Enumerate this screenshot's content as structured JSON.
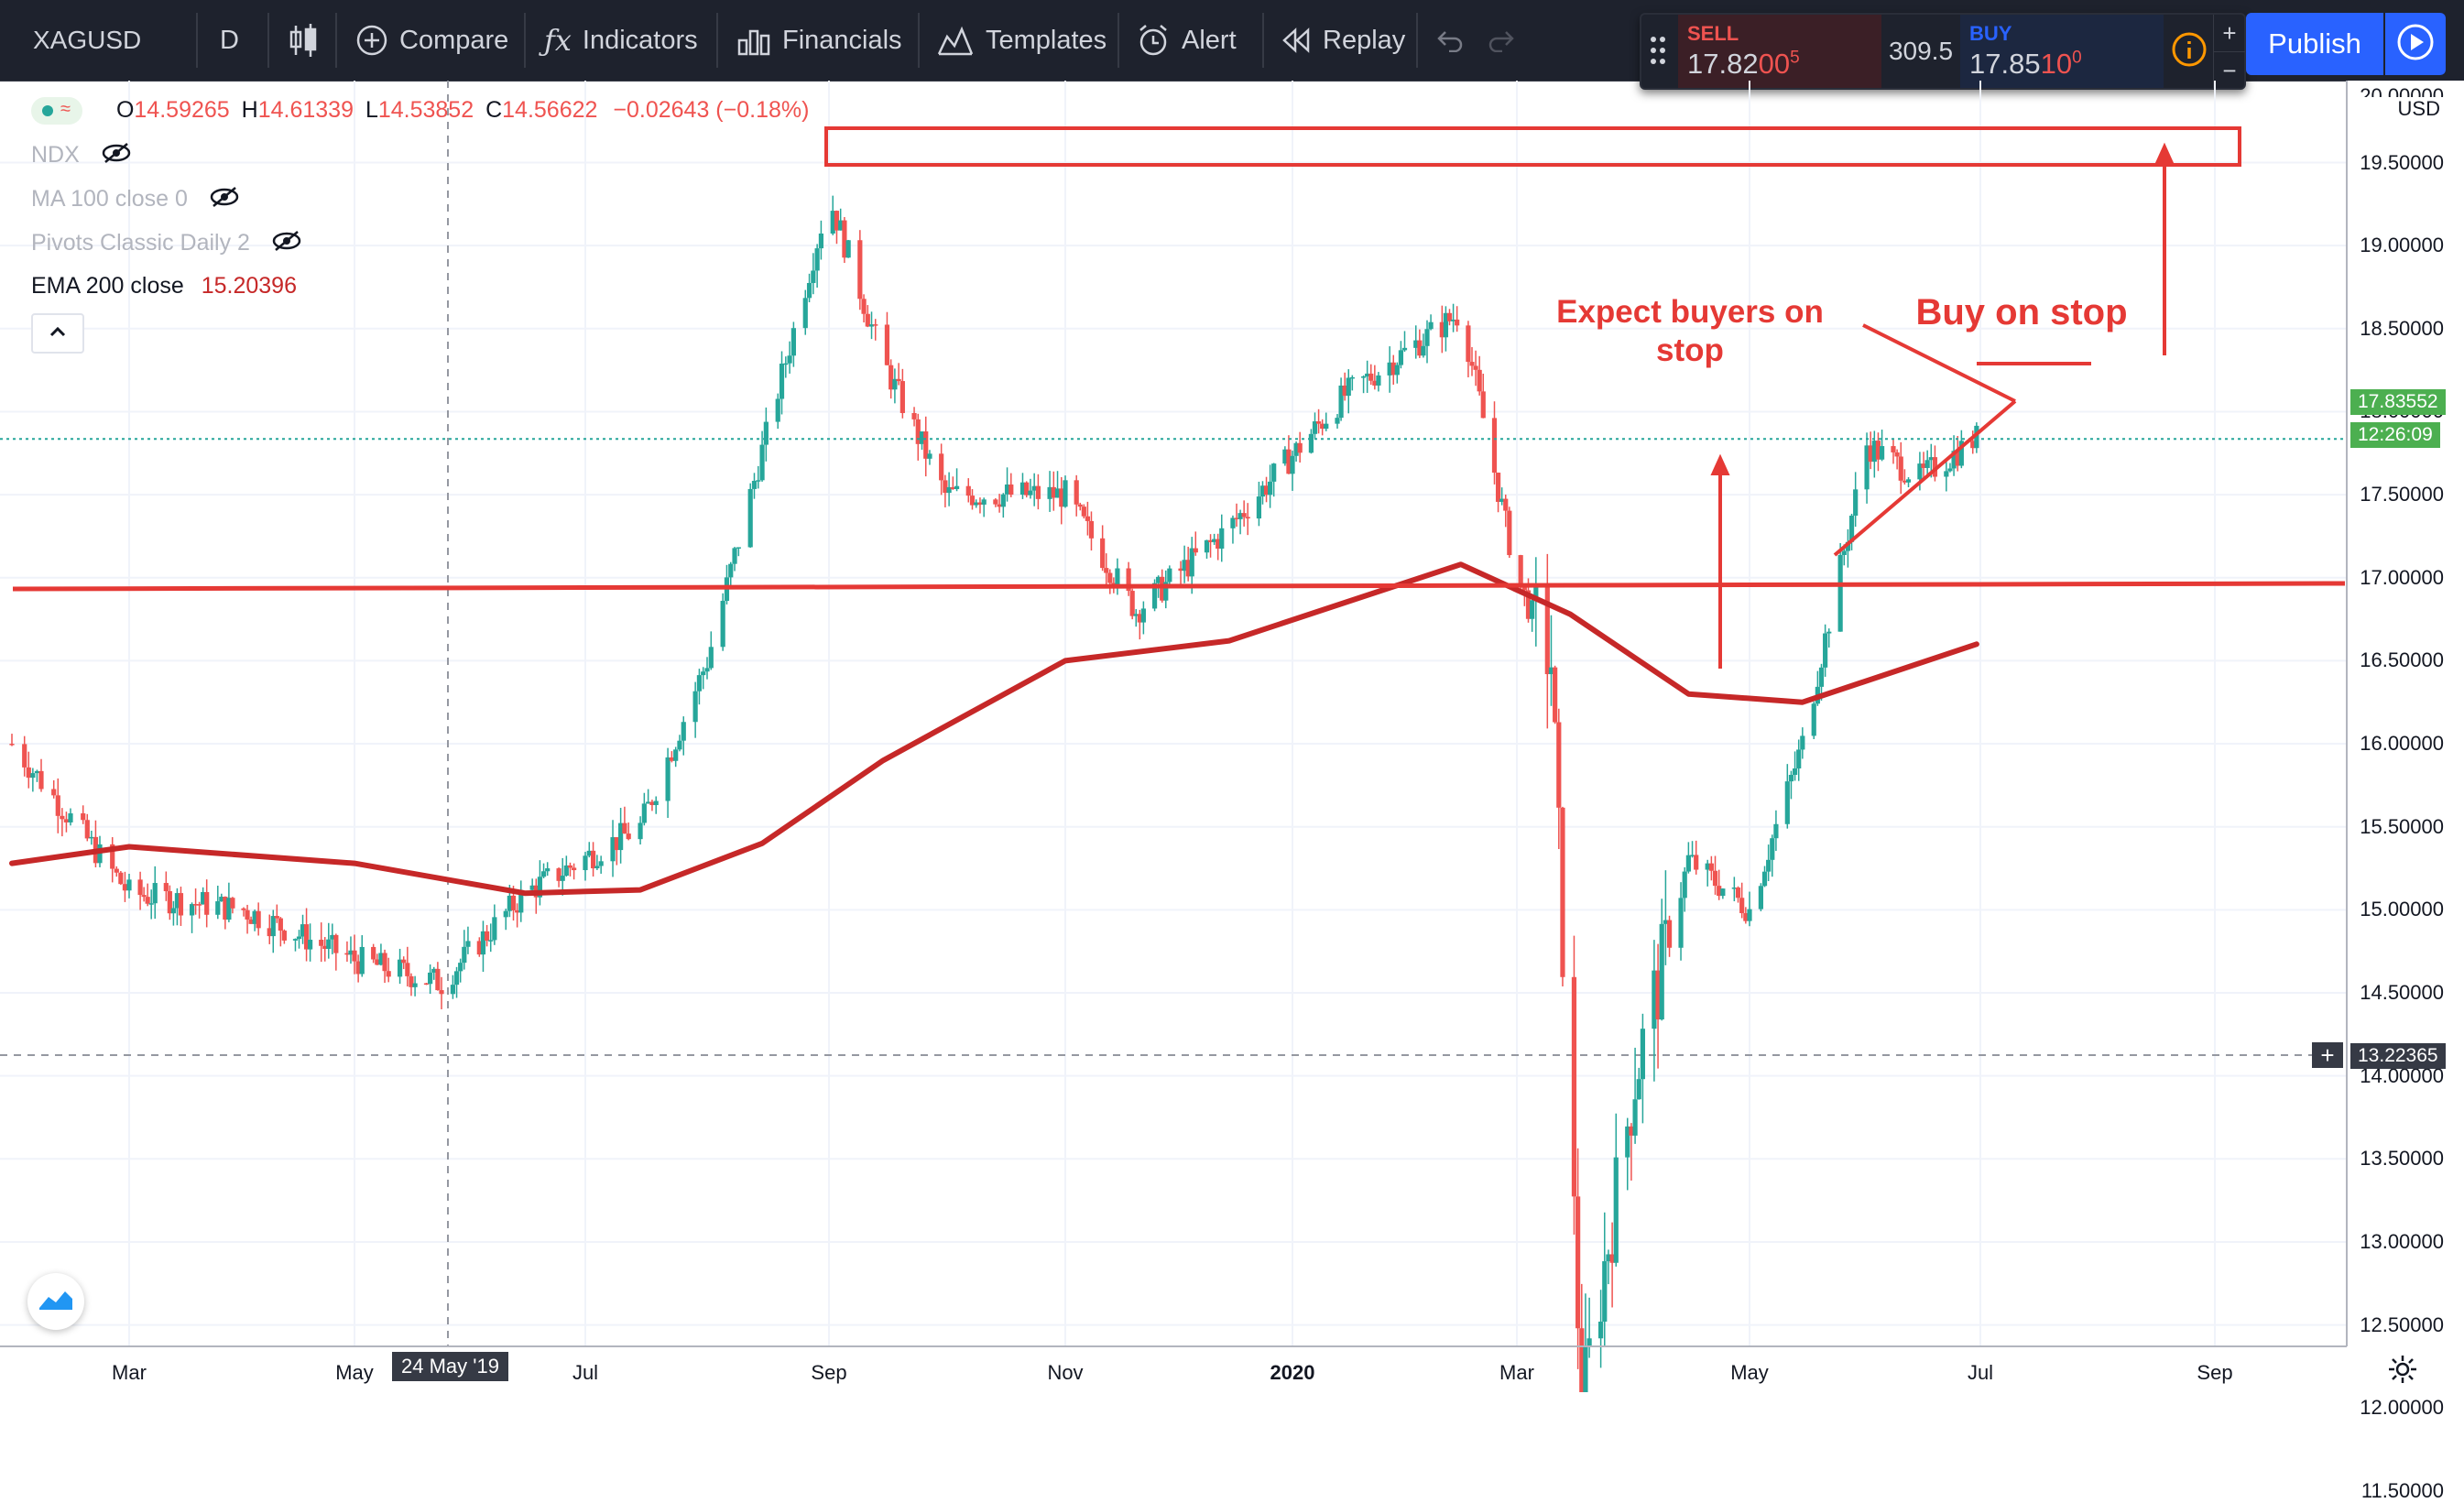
{
  "symbol": "XAGUSD",
  "interval": "D",
  "toolbar": {
    "compare": "Compare",
    "indicators": "Indicators",
    "financials": "Financials",
    "templates": "Templates",
    "alert": "Alert",
    "replay": "Replay",
    "publish": "Publish"
  },
  "trade": {
    "sell_label": "SELL",
    "sell_price_main": "17.82",
    "sell_price_big": "00",
    "sell_price_sup": "5",
    "spread": "309.5",
    "buy_label": "BUY",
    "buy_price_main": "17.85",
    "buy_price_big": "10",
    "buy_price_sup": "0"
  },
  "legend": {
    "ohlc": {
      "o_label": "O",
      "o": "14.59265",
      "h_label": "H",
      "h": "14.61339",
      "l_label": "L",
      "l": "14.53852",
      "c_label": "C",
      "c": "14.56622",
      "change": "−0.02643 (−0.18%)"
    },
    "ndx": "NDX",
    "ma": "MA 100 close 0",
    "pivots": "Pivots Classic Daily 2",
    "ema_label": "EMA 200 close",
    "ema_value": "15.20396"
  },
  "price_axis": {
    "currency": "USD",
    "top_cut_label": "20.00000",
    "labels": [
      "19.50000",
      "19.00000",
      "18.50000",
      "18.00000",
      "17.50000",
      "17.00000",
      "16.50000",
      "16.00000",
      "15.50000",
      "15.00000",
      "14.50000",
      "14.00000",
      "13.50000",
      "13.00000",
      "12.50000",
      "12.00000",
      "11.50000"
    ],
    "last_price": "17.83552",
    "countdown": "12:26:09",
    "crosshair_price": "13.22365"
  },
  "time_axis": {
    "labels": [
      "Mar",
      "May",
      "Jul",
      "Sep",
      "Nov",
      "2020",
      "Mar",
      "May",
      "Jul",
      "Sep"
    ],
    "crosshair_date": "24 May '19"
  },
  "annotations": {
    "expect_line1": "Expect buyers on",
    "expect_line2": "stop",
    "buy_on_stop": "Buy on stop"
  },
  "colors": {
    "up": "#26a69a",
    "down": "#ef5350",
    "drawing": "#e53935",
    "ema": "#c62828",
    "topbar": "#1e222d",
    "accent": "#2962ff",
    "last_price_bg": "#4caf50"
  },
  "chart_data": {
    "type": "candlestick",
    "title": "XAGUSD",
    "interval": "D",
    "x_range": [
      "2019-02",
      "2020-09"
    ],
    "ylim": [
      11.4,
      20.0
    ],
    "grid": true,
    "series": [
      {
        "name": "EMA 200 close",
        "dates": [
          "2019-02-01",
          "2019-03-01",
          "2019-05-01",
          "2019-06-15",
          "2019-07-15",
          "2019-08-15",
          "2019-09-15",
          "2019-11-01",
          "2019-12-15",
          "2020-02-15",
          "2020-03-15",
          "2020-04-15",
          "2020-05-15",
          "2020-06-30"
        ],
        "values": [
          15.28,
          15.38,
          15.28,
          15.1,
          15.12,
          15.4,
          15.9,
          16.5,
          16.62,
          17.08,
          16.78,
          16.3,
          16.25,
          16.6
        ]
      },
      {
        "name": "XAGUSD",
        "dates": [
          "2019-02-01",
          "2019-03-01",
          "2019-04-01",
          "2019-05-01",
          "2019-05-24",
          "2019-06-15",
          "2019-07-15",
          "2019-08-01",
          "2019-09-01",
          "2019-09-15",
          "2019-10-01",
          "2019-11-01",
          "2019-11-20",
          "2019-12-15",
          "2020-01-15",
          "2020-02-15",
          "2020-03-01",
          "2020-03-10",
          "2020-03-18",
          "2020-04-01",
          "2020-04-15",
          "2020-05-01",
          "2020-05-15",
          "2020-06-01",
          "2020-06-15",
          "2020-06-30"
        ],
        "close": [
          16.0,
          15.1,
          15.0,
          14.7,
          14.56,
          15.1,
          15.5,
          16.5,
          19.3,
          18.3,
          17.5,
          17.5,
          16.8,
          17.3,
          18.1,
          18.6,
          17.0,
          16.5,
          12.0,
          14.0,
          15.3,
          15.0,
          16.0,
          17.8,
          17.6,
          17.84
        ]
      }
    ]
  }
}
